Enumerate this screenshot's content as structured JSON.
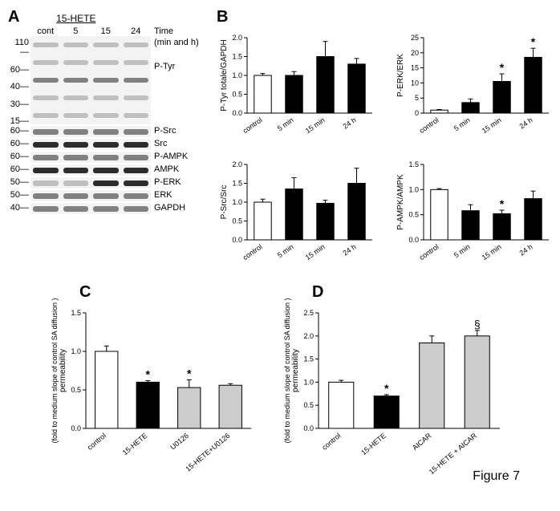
{
  "figure_label": "Figure 7",
  "panelA": {
    "label": "A",
    "treatment_label": "15-HETE",
    "lane_labels": [
      "cont",
      "5",
      "15",
      "24"
    ],
    "time_label": "Time",
    "time_units": "(min and h)",
    "mw_markers_ptyr": [
      "110",
      "60",
      "40",
      "30",
      "15"
    ],
    "rows": [
      {
        "label": "P-Tyr",
        "height": 110,
        "type": "ptyr"
      },
      {
        "label": "P-Src",
        "height": 14,
        "mw": "60",
        "intens": [
          "med",
          "med",
          "med",
          "med"
        ]
      },
      {
        "label": "Src",
        "height": 14,
        "mw": "60",
        "intens": [
          "strong",
          "strong",
          "strong",
          "strong"
        ]
      },
      {
        "label": "P-AMPK",
        "height": 14,
        "mw": "60",
        "intens": [
          "med",
          "med",
          "med",
          "med"
        ]
      },
      {
        "label": "AMPK",
        "height": 14,
        "mw": "60",
        "intens": [
          "strong",
          "strong",
          "strong",
          "strong"
        ]
      },
      {
        "label": "P-ERK",
        "height": 14,
        "mw": "50",
        "intens": [
          "faint",
          "faint",
          "strong",
          "strong"
        ]
      },
      {
        "label": "ERK",
        "height": 14,
        "mw": "50",
        "intens": [
          "med",
          "med",
          "med",
          "med"
        ]
      },
      {
        "label": "GAPDH",
        "height": 14,
        "mw": "40",
        "intens": [
          "med",
          "med",
          "med",
          "med"
        ]
      }
    ]
  },
  "panelB": {
    "label": "B",
    "categories": [
      "control",
      "5 min",
      "15 min",
      "24 h"
    ],
    "charts": [
      {
        "ylab": "P-Tyr totale/GAPDH",
        "ymax": 2.0,
        "ystep": 0.5,
        "vals": [
          1.0,
          1.0,
          1.5,
          1.3
        ],
        "errs": [
          0.05,
          0.1,
          0.4,
          0.15
        ],
        "sig": [
          "",
          "",
          "",
          ""
        ],
        "first_open": true
      },
      {
        "ylab": "P-ERK/ERK",
        "ymax": 25,
        "ystep": 5,
        "vals": [
          1.0,
          3.5,
          10.5,
          18.5
        ],
        "errs": [
          0.2,
          1.2,
          2.5,
          3.0
        ],
        "sig": [
          "",
          "",
          "*",
          "*"
        ],
        "first_open": true
      },
      {
        "ylab": "P-Src/Src",
        "ymax": 2.0,
        "ystep": 0.5,
        "vals": [
          1.0,
          1.35,
          0.97,
          1.5
        ],
        "errs": [
          0.08,
          0.3,
          0.08,
          0.4
        ],
        "sig": [
          "",
          "",
          "",
          ""
        ],
        "first_open": true
      },
      {
        "ylab": "P-AMPK/AMPK",
        "ymax": 1.5,
        "ystep": 0.5,
        "vals": [
          1.0,
          0.58,
          0.52,
          0.82
        ],
        "errs": [
          0.02,
          0.12,
          0.07,
          0.15
        ],
        "sig": [
          "",
          "",
          "*",
          ""
        ],
        "first_open": true
      }
    ]
  },
  "panelC": {
    "label": "C",
    "ylab1": "permeability",
    "ylab2": "(fold to medium slope of control SA diffusion )",
    "ymax": 1.5,
    "ystep": 0.5,
    "categories": [
      "control",
      "15-HETE",
      "U0126",
      "15-HETE+U0126"
    ],
    "vals": [
      1.0,
      0.6,
      0.53,
      0.56
    ],
    "errs": [
      0.07,
      0.02,
      0.1,
      0.02
    ],
    "fills": [
      "open",
      "solid",
      "grey",
      "grey"
    ],
    "sig": [
      "",
      "*",
      "*",
      ""
    ]
  },
  "panelD": {
    "label": "D",
    "ylab1": "permeability",
    "ylab2": "(fold to medium slope of control SA diffusion )",
    "ymax": 2.5,
    "ystep": 0.5,
    "categories": [
      "control",
      "15-HETE",
      "AICAR",
      "15-HETE + AICAR"
    ],
    "vals": [
      1.0,
      0.7,
      1.85,
      2.0
    ],
    "errs": [
      0.04,
      0.03,
      0.15,
      0.12
    ],
    "fills": [
      "open",
      "solid",
      "grey",
      "grey"
    ],
    "sig": [
      "",
      "*",
      "",
      "§"
    ]
  },
  "colors": {
    "open": "#ffffff",
    "solid": "#000000",
    "grey": "#cccccc",
    "axis": "#000000",
    "bg": "#ffffff"
  }
}
